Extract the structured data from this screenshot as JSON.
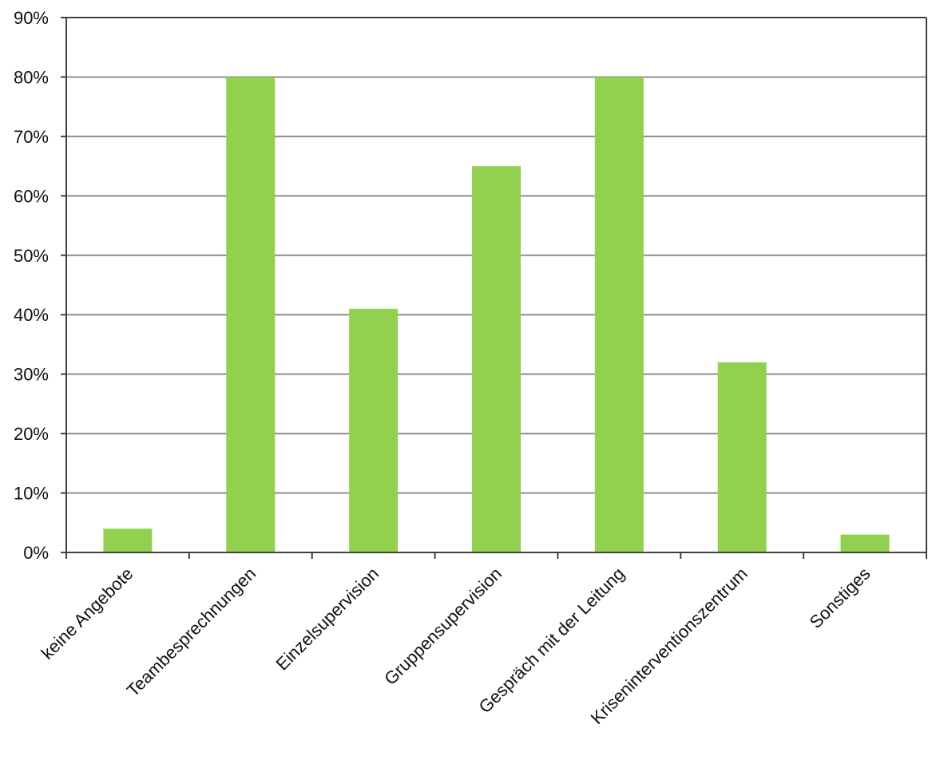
{
  "chart_data": {
    "type": "bar",
    "title": "",
    "xlabel": "",
    "ylabel": "",
    "categories": [
      "keine Angebote",
      "Teambesprechnungen",
      "Einzelsupervision",
      "Gruppensupervision",
      "Gespräch mit der Leitung",
      "Kriseninterventionszentrum",
      "Sonstiges"
    ],
    "values": [
      4,
      80,
      41,
      65,
      80,
      32,
      3
    ],
    "ylim": [
      0,
      90
    ],
    "yticks": [
      0,
      10,
      20,
      30,
      40,
      50,
      60,
      70,
      80,
      90
    ],
    "ytick_labels": [
      "0%",
      "10%",
      "20%",
      "30%",
      "40%",
      "50%",
      "60%",
      "70%",
      "80%",
      "90%"
    ],
    "grid": true,
    "legend": "none",
    "bar_color": "#92d050",
    "grid_color": "#8c8c8c",
    "axis_color": "#404040"
  }
}
